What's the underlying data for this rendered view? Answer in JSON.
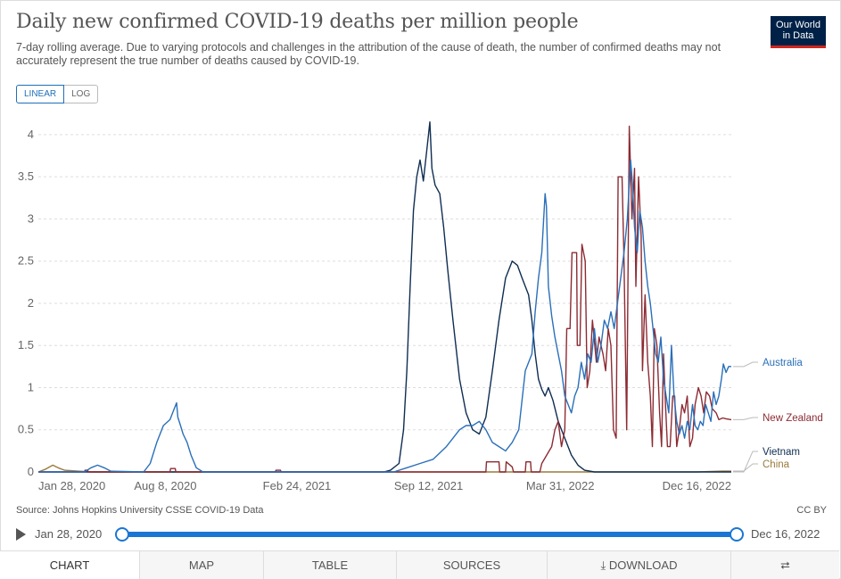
{
  "header": {
    "title": "Daily new confirmed COVID-19 deaths per million people",
    "subtitle": "7-day rolling average. Due to varying protocols and challenges in the attribution of the cause of death, the number of confirmed deaths may not accurately represent the true number of deaths caused by COVID-19.",
    "logo_line1": "Our World",
    "logo_line2": "in Data"
  },
  "controls": {
    "linear_label": "LINEAR",
    "log_label": "LOG"
  },
  "footer": {
    "source": "Source: Johns Hopkins University CSSE COVID-19 Data",
    "license": "CC BY"
  },
  "timeline": {
    "start": "Jan 28, 2020",
    "end": "Dec 16, 2022"
  },
  "tabs": {
    "chart": "CHART",
    "map": "MAP",
    "table": "TABLE",
    "sources": "SOURCES",
    "download": "DOWNLOAD"
  },
  "colors": {
    "australia": "#2a6fb9",
    "new_zealand": "#8c2b33",
    "vietnam": "#0f2d52",
    "china": "#9a7a3b",
    "grid": "#dddddd"
  },
  "chart_data": {
    "type": "line",
    "title": "Daily new confirmed COVID-19 deaths per million people",
    "x_unit": "days since Jan 28, 2020",
    "xlim": [
      0,
      1053
    ],
    "ylim": [
      0,
      4.2
    ],
    "yticks": [
      0,
      0.5,
      1,
      1.5,
      2,
      2.5,
      3,
      3.5,
      4
    ],
    "ytick_labels": [
      "0",
      "0.5",
      "1",
      "1.5",
      "2",
      "2.5",
      "3",
      "3.5",
      "4"
    ],
    "xticks": [
      0,
      193,
      393,
      593,
      793,
      1053
    ],
    "xtick_labels": [
      "Jan 28, 2020",
      "Aug 8, 2020",
      "Feb 24, 2021",
      "Sep 12, 2021",
      "Mar 31, 2022",
      "Dec 16, 2022"
    ],
    "grid": true,
    "series": [
      {
        "name": "China",
        "label": "China",
        "points": [
          [
            0,
            0
          ],
          [
            10,
            0.03
          ],
          [
            22,
            0.08
          ],
          [
            30,
            0.05
          ],
          [
            40,
            0.02
          ],
          [
            60,
            0.01
          ],
          [
            80,
            0
          ],
          [
            1000,
            0
          ],
          [
            1040,
            0.01
          ],
          [
            1053,
            0.01
          ]
        ]
      },
      {
        "name": "Vietnam",
        "label": "Vietnam",
        "points": [
          [
            0,
            0
          ],
          [
            525,
            0
          ],
          [
            535,
            0.02
          ],
          [
            548,
            0.1
          ],
          [
            555,
            0.5
          ],
          [
            560,
            1.2
          ],
          [
            565,
            2.2
          ],
          [
            570,
            3.1
          ],
          [
            575,
            3.5
          ],
          [
            580,
            3.7
          ],
          [
            585,
            3.45
          ],
          [
            590,
            3.8
          ],
          [
            595,
            4.15
          ],
          [
            598,
            3.6
          ],
          [
            603,
            3.4
          ],
          [
            610,
            3.3
          ],
          [
            616,
            2.9
          ],
          [
            622,
            2.4
          ],
          [
            630,
            1.8
          ],
          [
            640,
            1.1
          ],
          [
            650,
            0.7
          ],
          [
            660,
            0.5
          ],
          [
            670,
            0.45
          ],
          [
            680,
            0.65
          ],
          [
            690,
            1.2
          ],
          [
            700,
            1.8
          ],
          [
            710,
            2.3
          ],
          [
            720,
            2.5
          ],
          [
            728,
            2.45
          ],
          [
            735,
            2.3
          ],
          [
            740,
            2.2
          ],
          [
            745,
            2.1
          ],
          [
            750,
            1.8
          ],
          [
            755,
            1.4
          ],
          [
            760,
            1.1
          ],
          [
            765,
            0.98
          ],
          [
            770,
            0.9
          ],
          [
            775,
            1.0
          ],
          [
            782,
            0.85
          ],
          [
            790,
            0.6
          ],
          [
            800,
            0.4
          ],
          [
            810,
            0.2
          ],
          [
            820,
            0.08
          ],
          [
            830,
            0.02
          ],
          [
            845,
            0
          ],
          [
            1053,
            0
          ]
        ]
      },
      {
        "name": "New Zealand",
        "label": "New Zealand",
        "points": [
          [
            0,
            0
          ],
          [
            70,
            0
          ],
          [
            71,
            0.02
          ],
          [
            75,
            0.02
          ],
          [
            76,
            0
          ],
          [
            200,
            0
          ],
          [
            201,
            0.04
          ],
          [
            208,
            0.04
          ],
          [
            209,
            0
          ],
          [
            360,
            0
          ],
          [
            361,
            0.02
          ],
          [
            368,
            0.02
          ],
          [
            369,
            0
          ],
          [
            680,
            0
          ],
          [
            681,
            0.12
          ],
          [
            700,
            0.12
          ],
          [
            701,
            0
          ],
          [
            710,
            0
          ],
          [
            711,
            0.12
          ],
          [
            720,
            0.06
          ],
          [
            722,
            0
          ],
          [
            740,
            0
          ],
          [
            741,
            0.12
          ],
          [
            748,
            0.12
          ],
          [
            749,
            0
          ],
          [
            762,
            0
          ],
          [
            765,
            0.1
          ],
          [
            780,
            0.3
          ],
          [
            785,
            0.5
          ],
          [
            790,
            0.6
          ],
          [
            795,
            0.3
          ],
          [
            800,
            0.5
          ],
          [
            803,
            1.7
          ],
          [
            808,
            1.7
          ],
          [
            811,
            2.6
          ],
          [
            818,
            2.6
          ],
          [
            819,
            1.5
          ],
          [
            823,
            1.5
          ],
          [
            826,
            2.7
          ],
          [
            831,
            2.5
          ],
          [
            834,
            1.0
          ],
          [
            838,
            1.2
          ],
          [
            842,
            1.8
          ],
          [
            848,
            1.3
          ],
          [
            852,
            1.6
          ],
          [
            858,
            1.4
          ],
          [
            862,
            1.2
          ],
          [
            866,
            1.7
          ],
          [
            870,
            1.5
          ],
          [
            874,
            0.5
          ],
          [
            878,
            0.4
          ],
          [
            881,
            3.5
          ],
          [
            887,
            3.5
          ],
          [
            890,
            2.5
          ],
          [
            894,
            0.5
          ],
          [
            898,
            4.1
          ],
          [
            902,
            3.0
          ],
          [
            906,
            3.6
          ],
          [
            908,
            2.2
          ],
          [
            912,
            3.5
          ],
          [
            916,
            2.8
          ],
          [
            918,
            1.2
          ],
          [
            922,
            2.1
          ],
          [
            926,
            1.3
          ],
          [
            930,
            0.9
          ],
          [
            933,
            0.3
          ],
          [
            936,
            1.7
          ],
          [
            940,
            1.5
          ],
          [
            944,
            0.7
          ],
          [
            947,
            0.3
          ],
          [
            950,
            1.4
          ],
          [
            953,
            0.8
          ],
          [
            956,
            0.3
          ],
          [
            960,
            0.3
          ],
          [
            964,
            0.9
          ],
          [
            967,
            0.9
          ],
          [
            970,
            0.3
          ],
          [
            974,
            0.5
          ],
          [
            978,
            0.8
          ],
          [
            982,
            0.7
          ],
          [
            986,
            0.9
          ],
          [
            990,
            0.3
          ],
          [
            994,
            0.4
          ],
          [
            998,
            0.8
          ],
          [
            1003,
            1.0
          ],
          [
            1007,
            0.9
          ],
          [
            1011,
            0.7
          ],
          [
            1015,
            0.95
          ],
          [
            1020,
            0.9
          ],
          [
            1024,
            0.75
          ],
          [
            1030,
            0.7
          ],
          [
            1034,
            0.62
          ],
          [
            1040,
            0.64
          ],
          [
            1045,
            0.63
          ],
          [
            1053,
            0.62
          ]
        ]
      },
      {
        "name": "Australia",
        "label": "Australia",
        "points": [
          [
            0,
            0
          ],
          [
            70,
            0
          ],
          [
            80,
            0.05
          ],
          [
            90,
            0.08
          ],
          [
            100,
            0.05
          ],
          [
            110,
            0.01
          ],
          [
            160,
            0
          ],
          [
            170,
            0.1
          ],
          [
            180,
            0.35
          ],
          [
            190,
            0.55
          ],
          [
            200,
            0.62
          ],
          [
            205,
            0.72
          ],
          [
            210,
            0.82
          ],
          [
            212,
            0.65
          ],
          [
            216,
            0.55
          ],
          [
            220,
            0.45
          ],
          [
            226,
            0.35
          ],
          [
            232,
            0.2
          ],
          [
            240,
            0.05
          ],
          [
            250,
            0
          ],
          [
            540,
            0
          ],
          [
            560,
            0.05
          ],
          [
            580,
            0.1
          ],
          [
            600,
            0.15
          ],
          [
            620,
            0.3
          ],
          [
            640,
            0.5
          ],
          [
            650,
            0.55
          ],
          [
            660,
            0.55
          ],
          [
            670,
            0.6
          ],
          [
            680,
            0.5
          ],
          [
            690,
            0.35
          ],
          [
            700,
            0.3
          ],
          [
            710,
            0.25
          ],
          [
            720,
            0.35
          ],
          [
            730,
            0.5
          ],
          [
            740,
            1.2
          ],
          [
            750,
            1.4
          ],
          [
            755,
            1.9
          ],
          [
            760,
            2.3
          ],
          [
            765,
            2.6
          ],
          [
            770,
            3.3
          ],
          [
            772,
            3.15
          ],
          [
            775,
            2.2
          ],
          [
            780,
            1.85
          ],
          [
            785,
            1.6
          ],
          [
            790,
            1.4
          ],
          [
            795,
            1.2
          ],
          [
            800,
            0.9
          ],
          [
            805,
            0.8
          ],
          [
            810,
            0.7
          ],
          [
            815,
            0.9
          ],
          [
            820,
            1.0
          ],
          [
            825,
            1.3
          ],
          [
            830,
            1.1
          ],
          [
            835,
            1.4
          ],
          [
            840,
            1.3
          ],
          [
            845,
            1.7
          ],
          [
            850,
            1.3
          ],
          [
            855,
            1.5
          ],
          [
            860,
            1.8
          ],
          [
            865,
            1.7
          ],
          [
            870,
            1.9
          ],
          [
            875,
            1.7
          ],
          [
            880,
            2.0
          ],
          [
            885,
            2.3
          ],
          [
            890,
            2.6
          ],
          [
            895,
            3.0
          ],
          [
            900,
            3.7
          ],
          [
            903,
            3.4
          ],
          [
            906,
            2.9
          ],
          [
            910,
            2.6
          ],
          [
            914,
            3.1
          ],
          [
            918,
            2.9
          ],
          [
            922,
            2.5
          ],
          [
            926,
            2.2
          ],
          [
            930,
            2.0
          ],
          [
            934,
            1.7
          ],
          [
            938,
            1.4
          ],
          [
            942,
            1.3
          ],
          [
            946,
            1.6
          ],
          [
            950,
            1.1
          ],
          [
            954,
            0.9
          ],
          [
            958,
            0.7
          ],
          [
            962,
            1.5
          ],
          [
            966,
            0.9
          ],
          [
            970,
            0.6
          ],
          [
            974,
            0.45
          ],
          [
            978,
            0.55
          ],
          [
            982,
            0.4
          ],
          [
            986,
            0.6
          ],
          [
            990,
            0.5
          ],
          [
            994,
            0.8
          ],
          [
            998,
            0.55
          ],
          [
            1002,
            0.5
          ],
          [
            1006,
            0.6
          ],
          [
            1010,
            0.55
          ],
          [
            1014,
            0.8
          ],
          [
            1018,
            0.7
          ],
          [
            1022,
            0.6
          ],
          [
            1026,
            0.95
          ],
          [
            1030,
            0.8
          ],
          [
            1034,
            0.9
          ],
          [
            1038,
            1.1
          ],
          [
            1041,
            1.28
          ],
          [
            1045,
            1.18
          ],
          [
            1049,
            1.25
          ],
          [
            1053,
            1.25
          ]
        ]
      }
    ]
  }
}
